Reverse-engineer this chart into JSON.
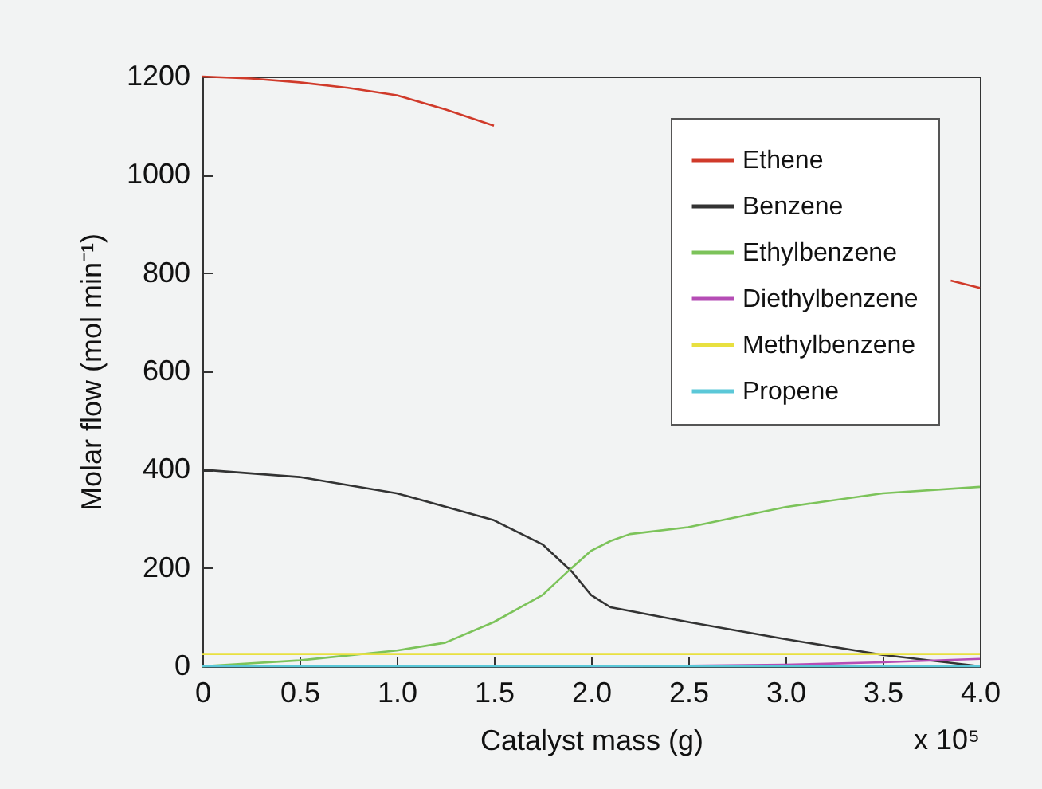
{
  "chart_data": {
    "type": "line",
    "xlabel": "Catalyst mass (g)",
    "ylabel": "Molar flow (mol min⁻¹)",
    "annotations": [
      "x 10⁵"
    ],
    "xlim": [
      0,
      4
    ],
    "xticks": [
      0,
      {
        "value": 0.5,
        "label": "0.5"
      },
      {
        "value": 1,
        "label": "1.0"
      },
      {
        "value": 1.5,
        "label": "1.5"
      },
      {
        "value": 2,
        "label": "2.0"
      },
      {
        "value": 2.5,
        "label": "2.5"
      },
      {
        "value": 3,
        "label": "3.0"
      },
      {
        "value": 3.5,
        "label": "3.5"
      },
      {
        "value": 4,
        "label": "4.0"
      }
    ],
    "ylim": [
      0,
      1200
    ],
    "yticks": [
      0,
      200,
      400,
      600,
      800,
      1000,
      1200
    ],
    "grid": false,
    "legend": "top right",
    "line_style": "solid",
    "series": [
      {
        "name": "Ethene",
        "color": "#d03a2a",
        "x": [
          0,
          0.25,
          0.5,
          0.75,
          1,
          1.25,
          1.5,
          null,
          3.85,
          4
        ],
        "values": [
          1200,
          1196,
          1188,
          1177,
          1162,
          1133,
          1100,
          null,
          785,
          770
        ]
      },
      {
        "name": "Benzene",
        "color": "#333333",
        "x": [
          0,
          0.5,
          1,
          1.5,
          1.75,
          1.9,
          2,
          2.1,
          2.5,
          3,
          3.5,
          4
        ],
        "values": [
          400,
          385,
          352,
          297,
          248,
          193,
          145,
          120,
          90,
          55,
          23,
          0
        ]
      },
      {
        "name": "Ethylbenzene",
        "color": "#7cc35a",
        "x": [
          0,
          0.5,
          1,
          1.25,
          1.5,
          1.75,
          1.9,
          2,
          2.1,
          2.2,
          2.5,
          3,
          3.5,
          4
        ],
        "values": [
          0,
          12,
          32,
          48,
          90,
          145,
          200,
          235,
          255,
          269,
          283,
          324,
          352,
          365
        ]
      },
      {
        "name": "Diethylbenzene",
        "color": "#b54db5",
        "x": [
          2,
          2.5,
          3,
          3.5,
          4
        ],
        "values": [
          0,
          1,
          3,
          8,
          15
        ]
      },
      {
        "name": "Methylbenzene",
        "color": "#e8e040",
        "x": [
          0,
          4
        ],
        "values": [
          25,
          25
        ]
      },
      {
        "name": "Propene",
        "color": "#5bc8d8",
        "x": [
          0,
          4
        ],
        "values": [
          0,
          0
        ]
      }
    ]
  }
}
